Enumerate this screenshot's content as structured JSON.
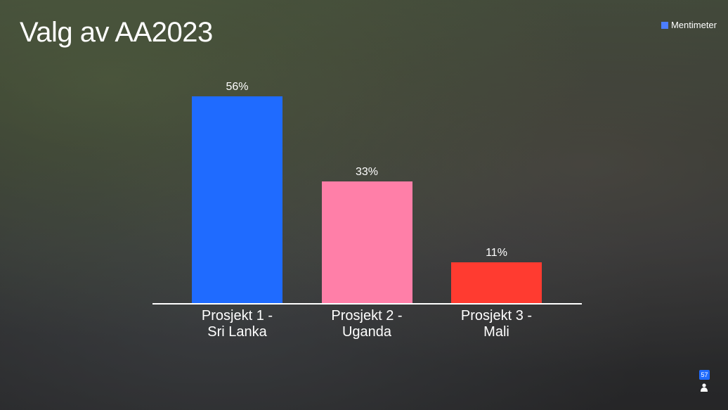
{
  "chart_data": {
    "type": "bar",
    "title": "Valg av AA2023",
    "categories": [
      "Prosjekt 1 - Sri Lanka",
      "Prosjekt 2 - Uganda",
      "Prosjekt 3 - Mali"
    ],
    "values": [
      56,
      33,
      11
    ],
    "value_labels": [
      "56%",
      "33%",
      "11%"
    ],
    "colors": [
      "#1f6bff",
      "#ff7fa8",
      "#ff3b30"
    ]
  },
  "brand": "Mentimeter",
  "participant_count": 57
}
